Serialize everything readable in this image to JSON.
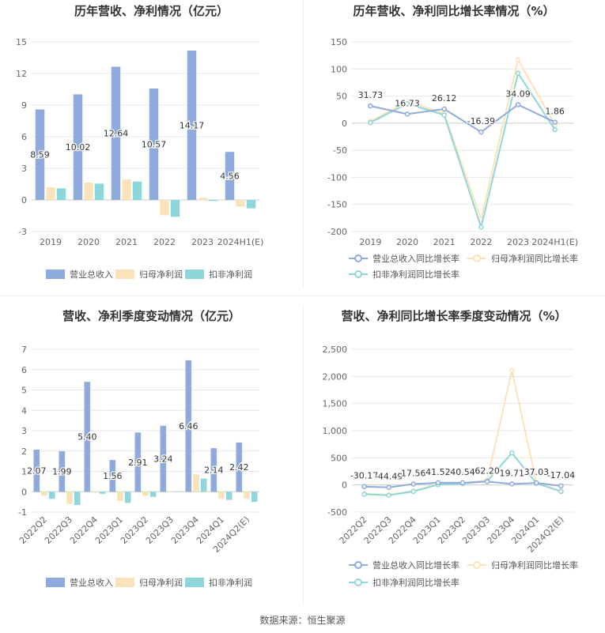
{
  "source": "数据来源：恒生聚源",
  "colors": {
    "rev": "#8faadc",
    "net": "#fbe3b9",
    "deduct": "#8fd6da",
    "grid": "#e8e8e8",
    "axis": "#cfcfcf",
    "tick": "#666666",
    "title": "#333333"
  },
  "chart_data": [
    {
      "type": "bar",
      "title": "历年营收、净利情况（亿元）",
      "categories": [
        "2019",
        "2020",
        "2021",
        "2022",
        "2023",
        "2024H1(E)"
      ],
      "series": [
        {
          "name": "营业总收入",
          "values": [
            8.59,
            10.02,
            12.64,
            10.57,
            14.17,
            4.56
          ],
          "labels": [
            "8.59",
            "10.02",
            "12.64",
            "10.57",
            "14.17",
            "4.56"
          ]
        },
        {
          "name": "归母净利润",
          "values": [
            1.2,
            1.65,
            1.95,
            -1.45,
            0.2,
            -0.62
          ]
        },
        {
          "name": "扣非净利润",
          "values": [
            1.1,
            1.55,
            1.75,
            -1.6,
            -0.1,
            -0.8
          ]
        }
      ],
      "yticks": [
        "-3",
        "0",
        "3",
        "6",
        "9",
        "12",
        "15"
      ],
      "ylim": [
        -3,
        15
      ]
    },
    {
      "type": "line",
      "title": "历年营收、净利同比增长率情况（%）",
      "categories": [
        "2019",
        "2020",
        "2021",
        "2022",
        "2023",
        "2024H1(E)"
      ],
      "series": [
        {
          "name": "营业总收入同比增长率",
          "values": [
            31.73,
            16.73,
            26.12,
            -16.39,
            34.09,
            1.86
          ],
          "labels": [
            "31.73",
            "16.73",
            "26.12",
            "-16.39",
            "34.09",
            "1.86"
          ]
        },
        {
          "name": "归母净利润同比增长率",
          "values": [
            3,
            40,
            18,
            -178,
            117,
            -3
          ]
        },
        {
          "name": "扣非净利润同比增长率",
          "values": [
            1,
            36,
            15,
            -192,
            92,
            -12
          ]
        }
      ],
      "yticks": [
        "-200",
        "-150",
        "-100",
        "-50",
        "0",
        "50",
        "100",
        "150"
      ],
      "ylim": [
        -200,
        150
      ]
    },
    {
      "type": "bar",
      "title": "营收、净利季度变动情况（亿元）",
      "categories": [
        "2022Q2",
        "2022Q3",
        "2022Q4",
        "2023Q1",
        "2023Q2",
        "2023Q3",
        "2023Q4",
        "2024Q1",
        "2024Q2(E)"
      ],
      "series": [
        {
          "name": "营业总收入",
          "values": [
            2.07,
            1.99,
            5.4,
            1.56,
            2.91,
            3.24,
            6.46,
            2.14,
            2.42
          ],
          "labels": [
            "2.07",
            "1.99",
            "5.40",
            "1.56",
            "2.91",
            "3.24",
            "6.46",
            "2.14",
            "2.42"
          ]
        },
        {
          "name": "归母净利润",
          "values": [
            -0.2,
            -0.6,
            -0.05,
            -0.45,
            -0.2,
            0.02,
            0.85,
            -0.35,
            -0.35
          ]
        },
        {
          "name": "扣非净利润",
          "values": [
            -0.35,
            -0.65,
            -0.1,
            -0.55,
            -0.25,
            0.02,
            0.65,
            -0.4,
            -0.5
          ]
        }
      ],
      "yticks": [
        "-1",
        "0",
        "1",
        "2",
        "3",
        "4",
        "5",
        "6",
        "7"
      ],
      "ylim": [
        -1,
        7
      ]
    },
    {
      "type": "line",
      "title": "营收、净利同比增长率季度变动情况（%）",
      "categories": [
        "2022Q2",
        "2022Q3",
        "2022Q4",
        "2023Q1",
        "2023Q2",
        "2023Q3",
        "2023Q4",
        "2024Q1",
        "2024Q2(E)"
      ],
      "series": [
        {
          "name": "营业总收入同比增长率",
          "values": [
            -30.17,
            -44.49,
            17.56,
            41.52,
            40.54,
            62.2,
            19.71,
            37.03,
            -17.04
          ],
          "labels": [
            "-30.17",
            "-44.49",
            "17.56",
            "41.52",
            "40.54",
            "62.20",
            "19.71",
            "37.03",
            "-17.04"
          ]
        },
        {
          "name": "归母净利润同比增长率",
          "values": [
            -160,
            -180,
            -110,
            15,
            30,
            90,
            2110,
            40,
            -110
          ]
        },
        {
          "name": "扣非净利润同比增长率",
          "values": [
            -170,
            -190,
            -120,
            5,
            25,
            70,
            590,
            30,
            -120
          ]
        }
      ],
      "yticks": [
        "-500",
        "0",
        "500",
        "1,000",
        "1,500",
        "2,000",
        "2,500"
      ],
      "ylim": [
        -500,
        2500
      ]
    }
  ]
}
